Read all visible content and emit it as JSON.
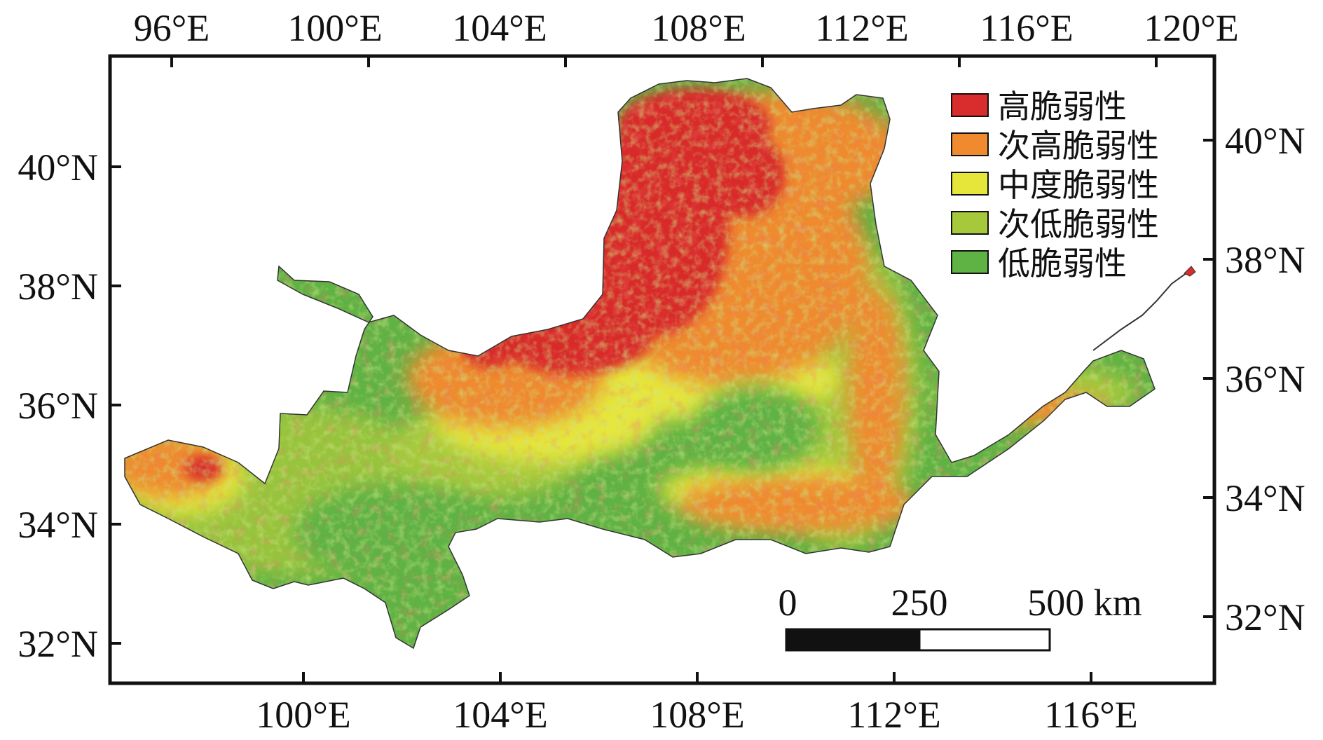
{
  "axes": {
    "top_labels": [
      "96°E",
      "100°E",
      "104°E",
      "108°E",
      "112°E",
      "116°E",
      "120°E"
    ],
    "bottom_labels": [
      "100°E",
      "104°E",
      "108°E",
      "112°E",
      "116°E"
    ],
    "left_labels": [
      "40°N",
      "38°N",
      "36°N",
      "34°N",
      "32°N"
    ],
    "right_labels": [
      "40°N",
      "38°N",
      "36°N",
      "34°N",
      "32°N"
    ]
  },
  "legend": {
    "items": [
      {
        "label": "高脆弱性",
        "color": "#d92c2c"
      },
      {
        "label": "次高脆弱性",
        "color": "#ef8a2e"
      },
      {
        "label": "中度脆弱性",
        "color": "#e6e63a"
      },
      {
        "label": "次低脆弱性",
        "color": "#a6c93c"
      },
      {
        "label": "低脆弱性",
        "color": "#5fb244"
      }
    ]
  },
  "scale_bar": {
    "labels": [
      "0",
      "250",
      "500 km"
    ]
  }
}
